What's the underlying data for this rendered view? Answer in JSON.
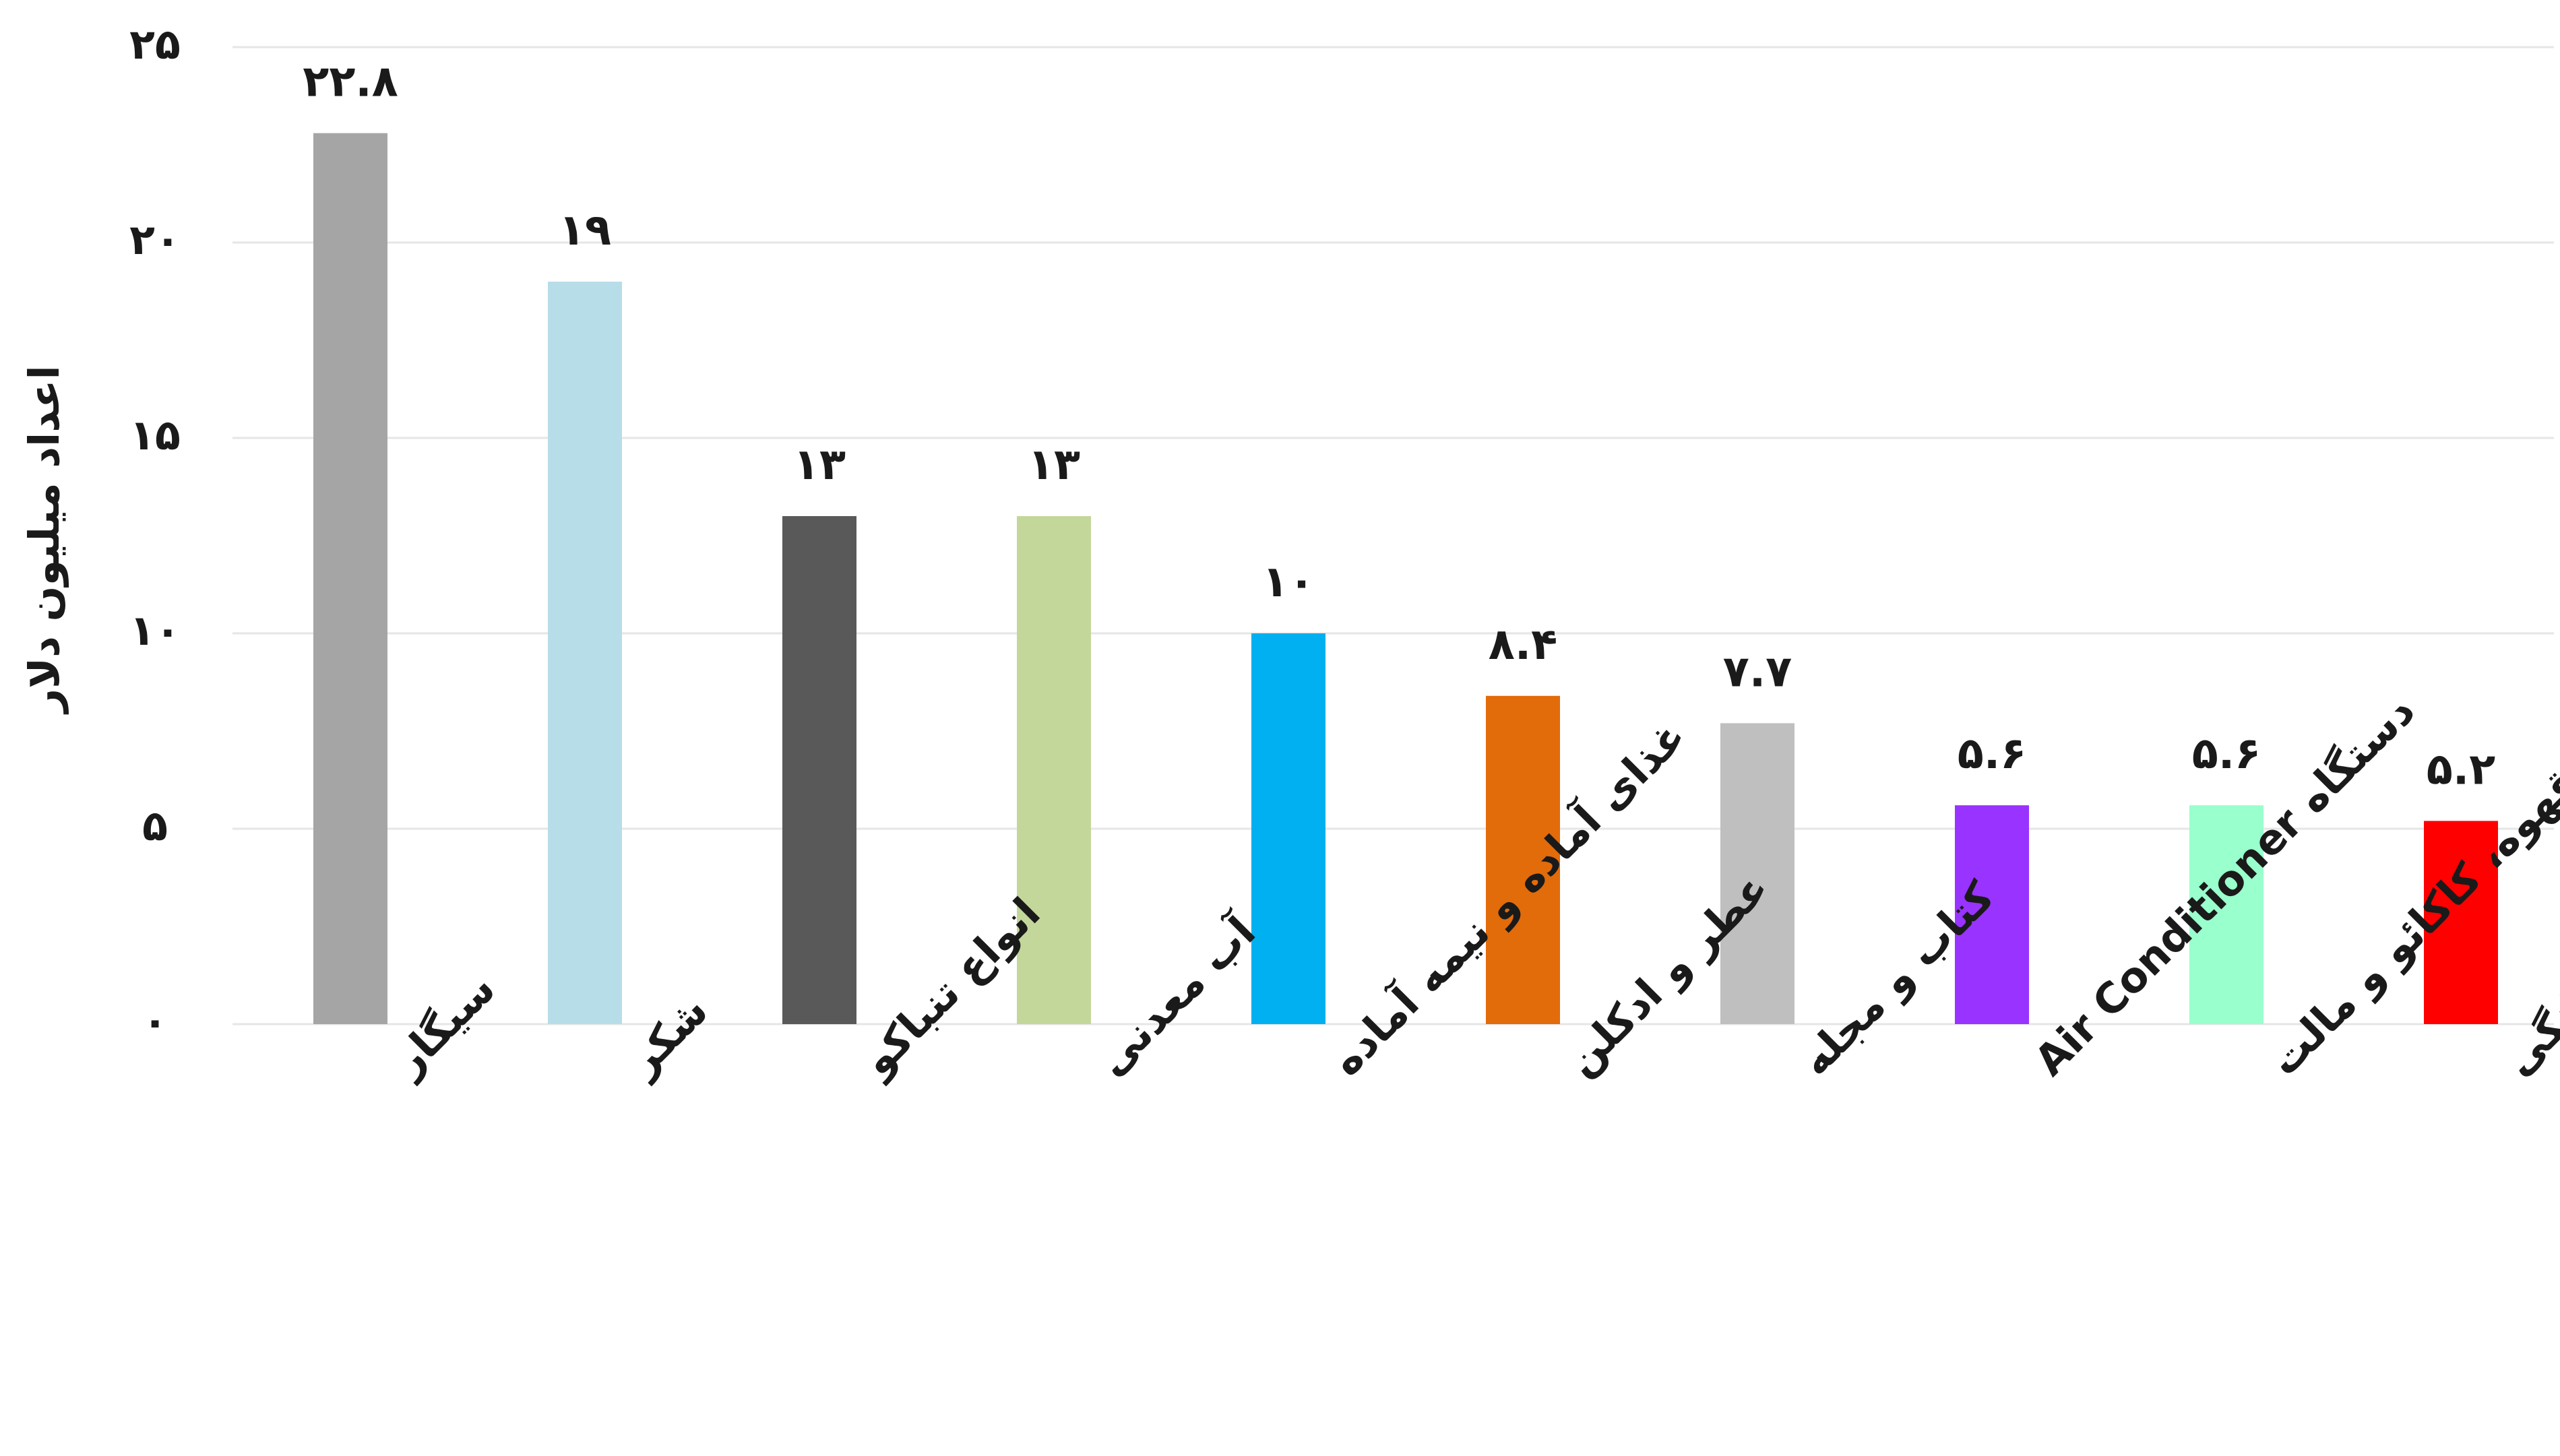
{
  "chart_data": {
    "type": "bar",
    "ylabel": "اعداد میلیون دلار",
    "ylim": [
      0,
      25
    ],
    "yticks": [
      0,
      5,
      10,
      15,
      20,
      25
    ],
    "ytick_labels": [
      "۰",
      "۵",
      "۱۰",
      "۱۵",
      "۲۰",
      "۲۵"
    ],
    "grid": true,
    "legend": "none",
    "categories": [
      "سیگار",
      "شکر",
      "انواع تنباکو",
      "آب معدنی",
      "غذای آماده و نیمه آماده",
      "عطر و ادکلن",
      "کتاب و مجله",
      "دستگاه Air Conditioner",
      "قهوه، کاکائو و مالت",
      "لوازم خانگی"
    ],
    "values": [
      22.8,
      19,
      13,
      13,
      10,
      8.4,
      7.7,
      5.6,
      5.6,
      5.2
    ],
    "value_labels": [
      "۲۲.۸",
      "۱۹",
      "۱۳",
      "۱۳",
      "۱۰",
      "۸.۴",
      "۷.۷",
      "۵.۶",
      "۵.۶",
      "۵.۲"
    ],
    "colors": [
      "#a5a5a5",
      "#b7dde8",
      "#595959",
      "#c4d79b",
      "#00b0f0",
      "#e26b0a",
      "#bfbfbf",
      "#9933ff",
      "#99ffcc",
      "#ff0000"
    ]
  }
}
